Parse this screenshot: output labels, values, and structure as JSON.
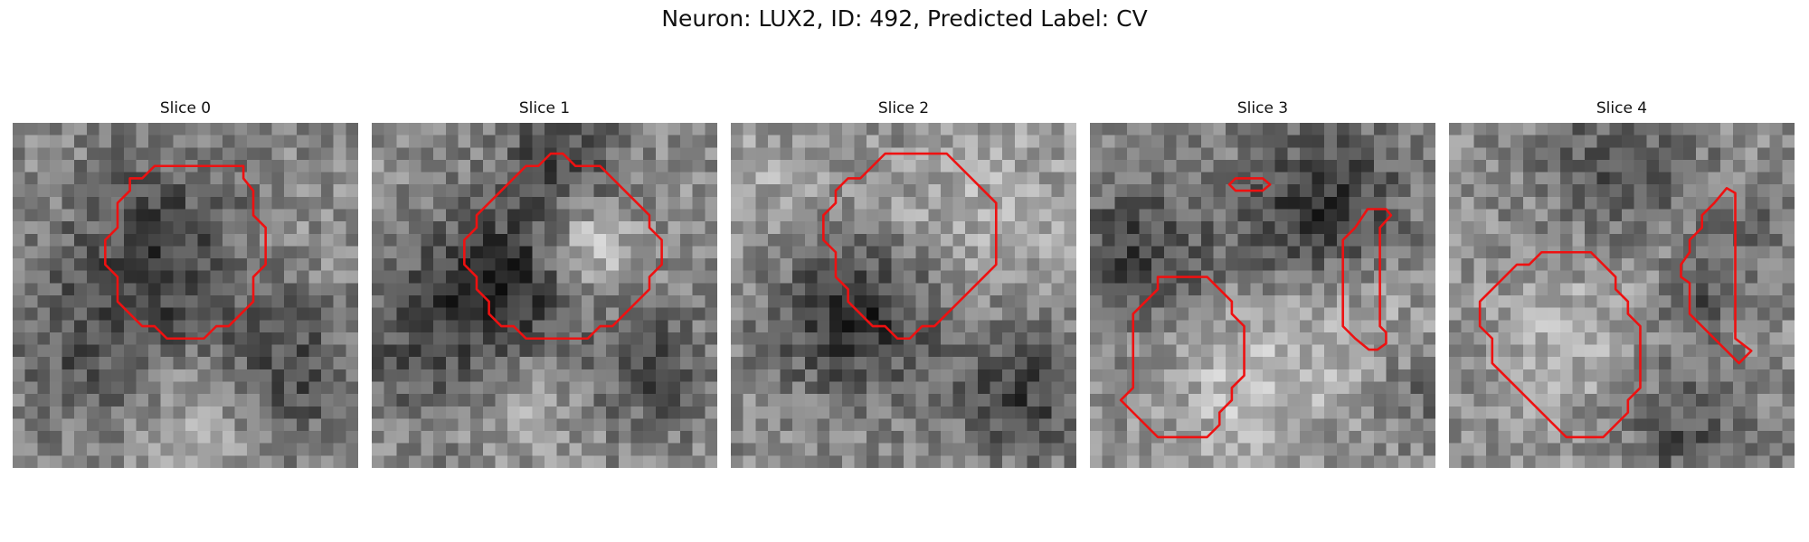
{
  "title": "Neuron: LUX2, ID: 492, Predicted Label: CV",
  "slices": [
    {
      "label": "Slice 0",
      "seed": 11,
      "blobs": [
        [
          0.45,
          0.4,
          0.34,
          -0.33
        ],
        [
          0.82,
          0.75,
          0.22,
          -0.3
        ],
        [
          0.2,
          0.7,
          0.25,
          -0.18
        ],
        [
          0.55,
          0.85,
          0.25,
          0.18
        ],
        [
          0.75,
          0.35,
          0.18,
          0.1
        ]
      ]
    },
    {
      "label": "Slice 1",
      "seed": 23,
      "blobs": [
        [
          0.4,
          0.45,
          0.22,
          -0.38
        ],
        [
          0.63,
          0.36,
          0.14,
          0.33
        ],
        [
          0.15,
          0.62,
          0.28,
          -0.25
        ],
        [
          0.55,
          0.08,
          0.2,
          -0.28
        ],
        [
          0.82,
          0.72,
          0.2,
          -0.28
        ],
        [
          0.45,
          0.85,
          0.2,
          0.12
        ]
      ]
    },
    {
      "label": "Slice 2",
      "seed": 37,
      "blobs": [
        [
          0.35,
          0.55,
          0.26,
          -0.4
        ],
        [
          0.85,
          0.8,
          0.2,
          -0.32
        ],
        [
          0.1,
          0.2,
          0.25,
          0.12
        ],
        [
          0.8,
          0.2,
          0.3,
          0.12
        ],
        [
          0.55,
          0.3,
          0.18,
          0.08
        ]
      ]
    },
    {
      "label": "Slice 3",
      "seed": 53,
      "blobs": [
        [
          0.7,
          0.22,
          0.25,
          -0.35
        ],
        [
          0.1,
          0.38,
          0.22,
          -0.3
        ],
        [
          0.45,
          0.45,
          0.3,
          -0.15
        ],
        [
          0.4,
          0.65,
          0.25,
          0.18
        ],
        [
          0.7,
          0.62,
          0.3,
          0.18
        ],
        [
          0.4,
          0.92,
          0.2,
          0.1
        ],
        [
          0.95,
          0.8,
          0.15,
          -0.18
        ]
      ]
    },
    {
      "label": "Slice 4",
      "seed": 71,
      "blobs": [
        [
          0.32,
          0.62,
          0.26,
          0.15
        ],
        [
          0.75,
          0.52,
          0.12,
          -0.25
        ],
        [
          0.5,
          0.1,
          0.25,
          -0.22
        ],
        [
          0.7,
          0.9,
          0.2,
          -0.25
        ],
        [
          0.88,
          0.3,
          0.15,
          -0.12
        ]
      ]
    }
  ],
  "contour_color": "#ee1111"
}
